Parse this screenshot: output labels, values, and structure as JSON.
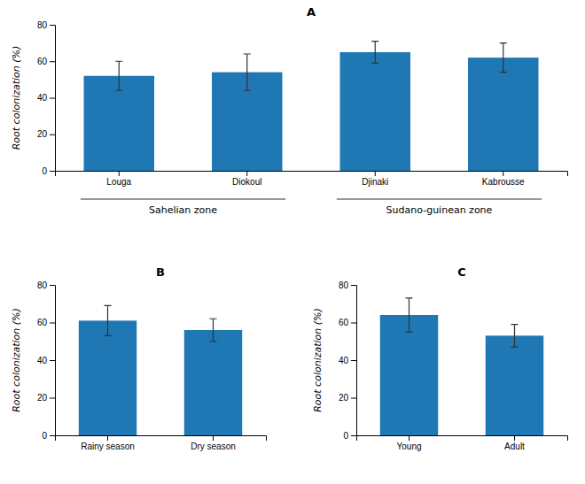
{
  "chart_data": [
    {
      "type": "bar",
      "title": "A",
      "categories": [
        "Louga",
        "Diokoul",
        "Djinaki",
        "Kabrousse"
      ],
      "values": [
        52,
        54,
        65,
        62
      ],
      "errors": [
        8,
        10,
        6,
        8
      ],
      "ylabel": "Root colonization (%)",
      "ylim": [
        0,
        80
      ],
      "yticks": [
        0,
        20,
        40,
        60,
        80
      ],
      "grid": false,
      "annotations": [
        {
          "text": "Sahelian zone",
          "range": [
            0,
            1
          ]
        },
        {
          "text": "Sudano-guinean zone",
          "range": [
            2,
            3
          ]
        }
      ]
    },
    {
      "type": "bar",
      "title": "B",
      "categories": [
        "Rainy season",
        "Dry season"
      ],
      "values": [
        61,
        56
      ],
      "errors": [
        8,
        6
      ],
      "ylabel": "Root colonization (%)",
      "ylim": [
        0,
        80
      ],
      "yticks": [
        0,
        20,
        40,
        60,
        80
      ],
      "grid": false
    },
    {
      "type": "bar",
      "title": "C",
      "categories": [
        "Young",
        "Adult"
      ],
      "values": [
        64,
        53
      ],
      "errors": [
        9,
        6
      ],
      "ylabel": "Root colonization (%)",
      "ylim": [
        0,
        80
      ],
      "yticks": [
        0,
        20,
        40,
        60,
        80
      ],
      "grid": false
    }
  ]
}
